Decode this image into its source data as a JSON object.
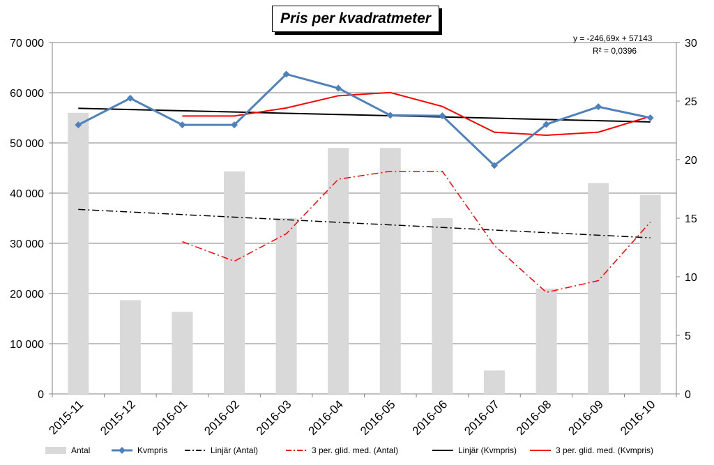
{
  "chart_data": {
    "type": "bar",
    "title": "Pris per kvadratmeter",
    "categories": [
      "2015-11",
      "2015-12",
      "2016-01",
      "2016-02",
      "2016-03",
      "2016-04",
      "2016-05",
      "2016-06",
      "2016-07",
      "2016-08",
      "2016-09",
      "2016-10"
    ],
    "y_left": {
      "ylim": [
        0,
        70000
      ],
      "ticks": [
        0,
        10000,
        20000,
        30000,
        40000,
        50000,
        60000,
        70000
      ],
      "tick_labels": [
        "0",
        "10 000",
        "20 000",
        "30 000",
        "40 000",
        "50 000",
        "60 000",
        "70 000"
      ]
    },
    "y_right": {
      "ylim": [
        0,
        30
      ],
      "ticks": [
        0,
        5,
        10,
        15,
        20,
        25,
        30
      ],
      "tick_labels": [
        "0",
        "5",
        "10",
        "15",
        "20",
        "25",
        "30"
      ]
    },
    "grid": true,
    "legend_position": "bottom",
    "series": [
      {
        "name": "Antal",
        "type": "bar",
        "axis": "right",
        "color": "#d9d9d9",
        "values": [
          24,
          8,
          7,
          19,
          15,
          21,
          21,
          15,
          2,
          9,
          18,
          17
        ]
      },
      {
        "name": "Kvmpris",
        "type": "line",
        "axis": "left",
        "color": "#4f81bd",
        "marker": "diamond",
        "values": [
          53600,
          58900,
          53600,
          53600,
          63700,
          60900,
          55500,
          55400,
          45500,
          53700,
          57200,
          55000
        ]
      },
      {
        "name": "Linjär (Antal)",
        "type": "trendline",
        "axis": "right",
        "color": "#000000",
        "dash": "dashdot",
        "values": [
          15.75,
          15.53,
          15.31,
          15.09,
          14.87,
          14.65,
          14.43,
          14.21,
          13.99,
          13.77,
          13.55,
          13.33
        ]
      },
      {
        "name": "3 per. glid. med. (Antal)",
        "type": "moving_average",
        "axis": "right",
        "color": "#ff0000",
        "dash": "dashdot",
        "values": [
          null,
          null,
          13,
          11.33,
          13.67,
          18.33,
          19,
          19,
          12.67,
          8.67,
          9.67,
          14.67
        ]
      },
      {
        "name": "Linjär (Kvmpris)",
        "type": "trendline",
        "axis": "left",
        "color": "#000000",
        "dash": "solid",
        "values": [
          56896,
          56650,
          56403,
          56156,
          55910,
          55663,
          55416,
          55170,
          54923,
          54676,
          54430,
          54183
        ]
      },
      {
        "name": "3 per. glid. med. (Kvmpris)",
        "type": "moving_average",
        "axis": "left",
        "color": "#ff0000",
        "dash": "solid",
        "values": [
          null,
          null,
          55367,
          55367,
          56967,
          59400,
          60033,
          57267,
          52133,
          51533,
          52133,
          55300
        ]
      }
    ],
    "annotations": [
      {
        "text": "y = -246,69x + 57143"
      },
      {
        "text": "R² = 0,0396"
      }
    ]
  }
}
